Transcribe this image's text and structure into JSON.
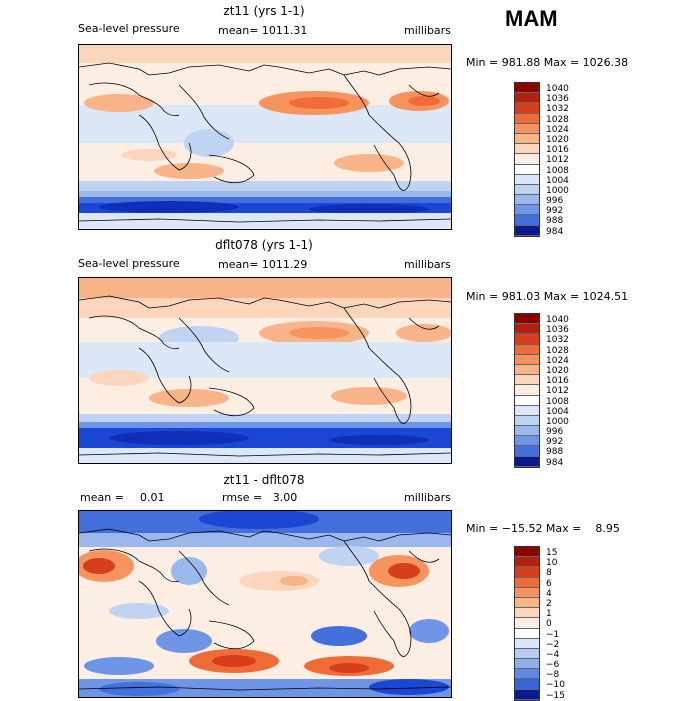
{
  "season": "MAM",
  "colors": {
    "abs_scale": [
      "#8b0000",
      "#b3200f",
      "#d63e1c",
      "#ef6b38",
      "#f7935e",
      "#f9b489",
      "#fbd6bd",
      "#fdeee3",
      "#ffffff",
      "#dce8f7",
      "#c0d3f2",
      "#9ab8ec",
      "#6f95e6",
      "#4470dd",
      "#1a47d3",
      "#0f2fb8",
      "#091a8e"
    ],
    "diff_scale": [
      "#8b0000",
      "#b3200f",
      "#d63e1c",
      "#ef6b38",
      "#f7935e",
      "#f9b489",
      "#fbd6bd",
      "#fdeee3",
      "#ffffff",
      "#dce8f7",
      "#b7cdf0",
      "#8eaee9",
      "#5f89e2",
      "#3864da",
      "#1a47d3",
      "#0f2fb8",
      "#091a8e"
    ]
  },
  "panels": [
    {
      "title": "zt11 (yrs 1-1)",
      "variable": "Sea-level pressure",
      "mean": "mean= 1011.31",
      "units": "millibars",
      "minmax": "Min = 981.88 Max = 1026.38",
      "colorbar_labels": [
        "1040",
        "1036",
        "1032",
        "1028",
        "1024",
        "1020",
        "1016",
        "1012",
        "1008",
        "1004",
        "1000",
        "996",
        "992",
        "988",
        "984"
      ]
    },
    {
      "title": "dflt078 (yrs 1-1)",
      "variable": "Sea-level pressure",
      "mean": "mean= 1011.29",
      "units": "millibars",
      "minmax": "Min = 981.03 Max = 1024.51",
      "colorbar_labels": [
        "1040",
        "1036",
        "1032",
        "1028",
        "1024",
        "1020",
        "1016",
        "1012",
        "1008",
        "1004",
        "1000",
        "996",
        "992",
        "988",
        "984"
      ]
    },
    {
      "title": "zt11 - dflt078",
      "mean_label": "mean =",
      "mean_value": "0.01",
      "rmse": "rmse =   3.00",
      "units": "millibars",
      "minmax": "Min = −15.52 Max =    8.95",
      "colorbar_labels": [
        "15",
        "10",
        "8",
        "6",
        "4",
        "2",
        "1",
        "0",
        "−1",
        "−2",
        "−4",
        "−6",
        "−8",
        "−10",
        "−15"
      ]
    }
  ]
}
